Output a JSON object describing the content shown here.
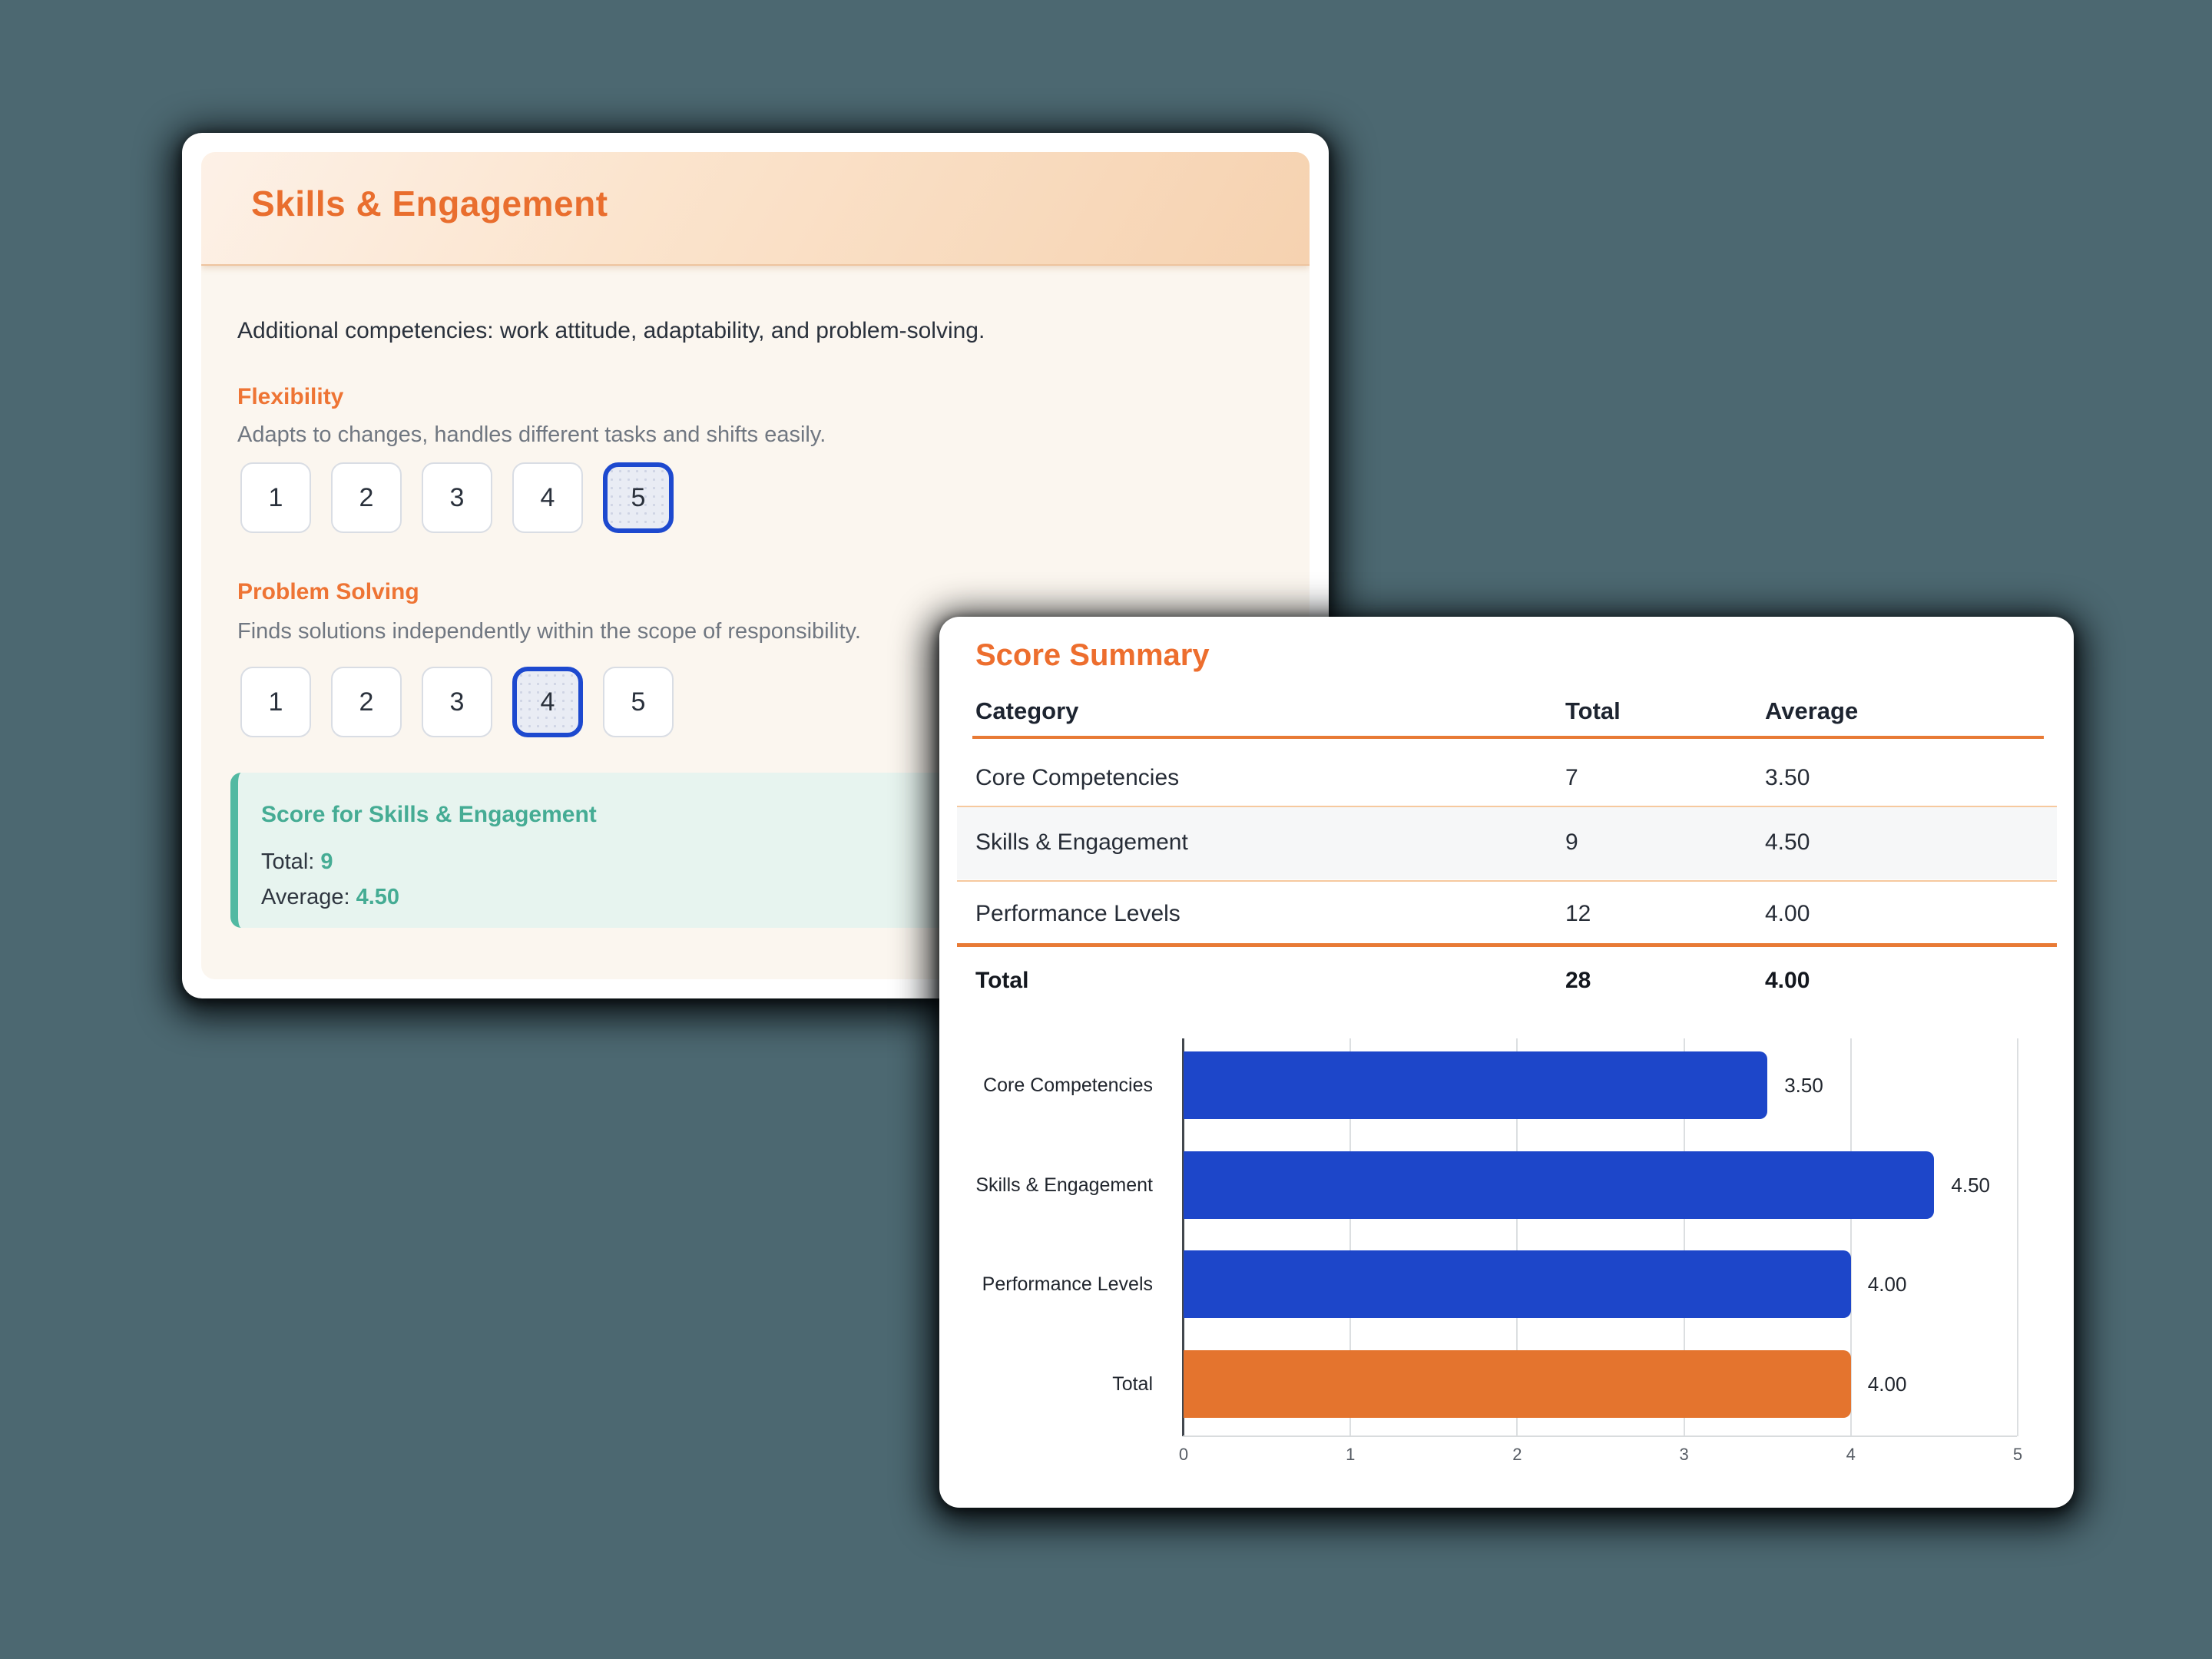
{
  "page": {
    "background_color": "#4c6871"
  },
  "skills_card": {
    "title": "Skills & Engagement",
    "intro": "Additional competencies: work attitude, adaptability, and problem-solving.",
    "questions": [
      {
        "label": "Flexibility",
        "description": "Adapts to changes, handles different tasks and shifts easily.",
        "options": [
          "1",
          "2",
          "3",
          "4",
          "5"
        ],
        "selected": "5"
      },
      {
        "label": "Problem Solving",
        "description": "Finds solutions independently within the scope of responsibility.",
        "options": [
          "1",
          "2",
          "3",
          "4",
          "5"
        ],
        "selected": "4"
      }
    ],
    "score_box": {
      "title": "Score for Skills & Engagement",
      "total_label": "Total:",
      "total_value": "9",
      "average_label": "Average:",
      "average_value": "4.50",
      "accent_color": "#45ac94"
    }
  },
  "summary_card": {
    "title": "Score Summary",
    "table": {
      "columns": [
        "Category",
        "Total",
        "Average"
      ],
      "rows": [
        {
          "category": "Core Competencies",
          "total": "7",
          "average": "3.50"
        },
        {
          "category": "Skills & Engagement",
          "total": "9",
          "average": "4.50"
        },
        {
          "category": "Performance Levels",
          "total": "12",
          "average": "4.00"
        }
      ],
      "total_row": {
        "category": "Total",
        "total": "28",
        "average": "4.00"
      },
      "accent_color": "#e87a35"
    }
  },
  "chart_data": {
    "type": "bar",
    "orientation": "horizontal",
    "categories": [
      "Core Competencies",
      "Skills & Engagement",
      "Performance Levels",
      "Total"
    ],
    "values": [
      3.5,
      4.5,
      4.0,
      4.0
    ],
    "value_labels": [
      "3.50",
      "4.50",
      "4.00",
      "4.00"
    ],
    "bar_colors": [
      "#1d46c9",
      "#1d46c9",
      "#1d46c9",
      "#e4742e"
    ],
    "xlim": [
      0,
      5
    ],
    "x_ticks": [
      "0",
      "1",
      "2",
      "3",
      "4",
      "5"
    ],
    "grid": true,
    "legend": false,
    "title": "",
    "xlabel": "",
    "ylabel": ""
  }
}
